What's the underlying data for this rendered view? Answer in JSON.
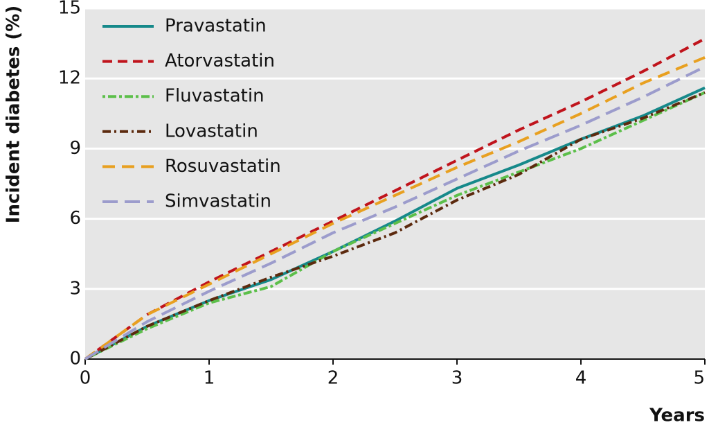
{
  "chart_data": {
    "type": "line",
    "xlabel": "Years",
    "ylabel": "Incident diabetes (%)",
    "x": [
      0,
      0.5,
      1,
      1.5,
      2,
      2.5,
      3,
      3.5,
      4,
      4.5,
      5
    ],
    "xlim": [
      0,
      5
    ],
    "xticks": [
      0,
      1,
      2,
      3,
      4,
      5
    ],
    "ylim": [
      0,
      15
    ],
    "yticks": [
      0,
      3,
      6,
      9,
      12,
      15
    ],
    "grid": true,
    "legend": "upper-left",
    "series": [
      {
        "name": "Pravastatin",
        "color": "#16898a",
        "values": [
          0,
          1.4,
          2.5,
          3.4,
          4.6,
          5.9,
          7.3,
          8.3,
          9.4,
          10.4,
          11.6
        ]
      },
      {
        "name": "Atorvastatin",
        "color": "#c0141c",
        "values": [
          0,
          1.9,
          3.3,
          4.6,
          5.9,
          7.2,
          8.5,
          9.8,
          11.0,
          12.3,
          13.7
        ]
      },
      {
        "name": "Fluvastatin",
        "color": "#5cbf4a",
        "values": [
          0,
          1.3,
          2.4,
          3.1,
          4.6,
          5.8,
          7.0,
          8.0,
          9.0,
          10.2,
          11.4
        ]
      },
      {
        "name": "Lovastatin",
        "color": "#5c2a0e",
        "values": [
          0,
          1.4,
          2.5,
          3.5,
          4.4,
          5.4,
          6.8,
          7.9,
          9.4,
          10.3,
          11.4
        ]
      },
      {
        "name": "Rosuvastatin",
        "color": "#e8a020",
        "values": [
          0,
          1.9,
          3.2,
          4.5,
          5.8,
          7.0,
          8.2,
          9.3,
          10.5,
          11.8,
          12.9
        ]
      },
      {
        "name": "Simvastatin",
        "color": "#9c9ccc",
        "values": [
          0,
          1.6,
          2.9,
          4.1,
          5.4,
          6.5,
          7.7,
          8.9,
          10.0,
          11.2,
          12.5
        ]
      }
    ]
  }
}
